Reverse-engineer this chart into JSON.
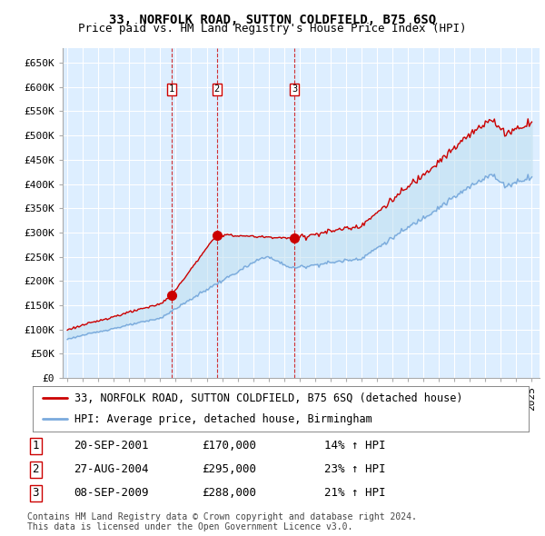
{
  "title": "33, NORFOLK ROAD, SUTTON COLDFIELD, B75 6SQ",
  "subtitle": "Price paid vs. HM Land Registry's House Price Index (HPI)",
  "ylabel_ticks": [
    "£0",
    "£50K",
    "£100K",
    "£150K",
    "£200K",
    "£250K",
    "£300K",
    "£350K",
    "£400K",
    "£450K",
    "£500K",
    "£550K",
    "£600K",
    "£650K"
  ],
  "ytick_values": [
    0,
    50000,
    100000,
    150000,
    200000,
    250000,
    300000,
    350000,
    400000,
    450000,
    500000,
    550000,
    600000,
    650000
  ],
  "ylim": [
    0,
    680000
  ],
  "xlim_start": 1994.7,
  "xlim_end": 2025.5,
  "background_color": "#ffffff",
  "plot_bg_color": "#ddeeff",
  "grid_color": "#ffffff",
  "sale_color": "#cc0000",
  "hpi_color": "#7aaadd",
  "fill_color": "#cce0f5",
  "sale_label": "33, NORFOLK ROAD, SUTTON COLDFIELD, B75 6SQ (detached house)",
  "hpi_label": "HPI: Average price, detached house, Birmingham",
  "transactions": [
    {
      "num": 1,
      "date_x": 2001.72,
      "price": 170000,
      "label": "20-SEP-2001",
      "price_label": "£170,000",
      "hpi_label": "14% ↑ HPI"
    },
    {
      "num": 2,
      "date_x": 2004.65,
      "price": 295000,
      "label": "27-AUG-2004",
      "price_label": "£295,000",
      "hpi_label": "23% ↑ HPI"
    },
    {
      "num": 3,
      "date_x": 2009.68,
      "price": 288000,
      "label": "08-SEP-2009",
      "price_label": "£288,000",
      "hpi_label": "21% ↑ HPI"
    }
  ],
  "footnote": "Contains HM Land Registry data © Crown copyright and database right 2024.\nThis data is licensed under the Open Government Licence v3.0.",
  "title_fontsize": 10,
  "subtitle_fontsize": 9,
  "tick_fontsize": 8,
  "legend_fontsize": 8.5,
  "table_fontsize": 9,
  "footnote_fontsize": 7
}
